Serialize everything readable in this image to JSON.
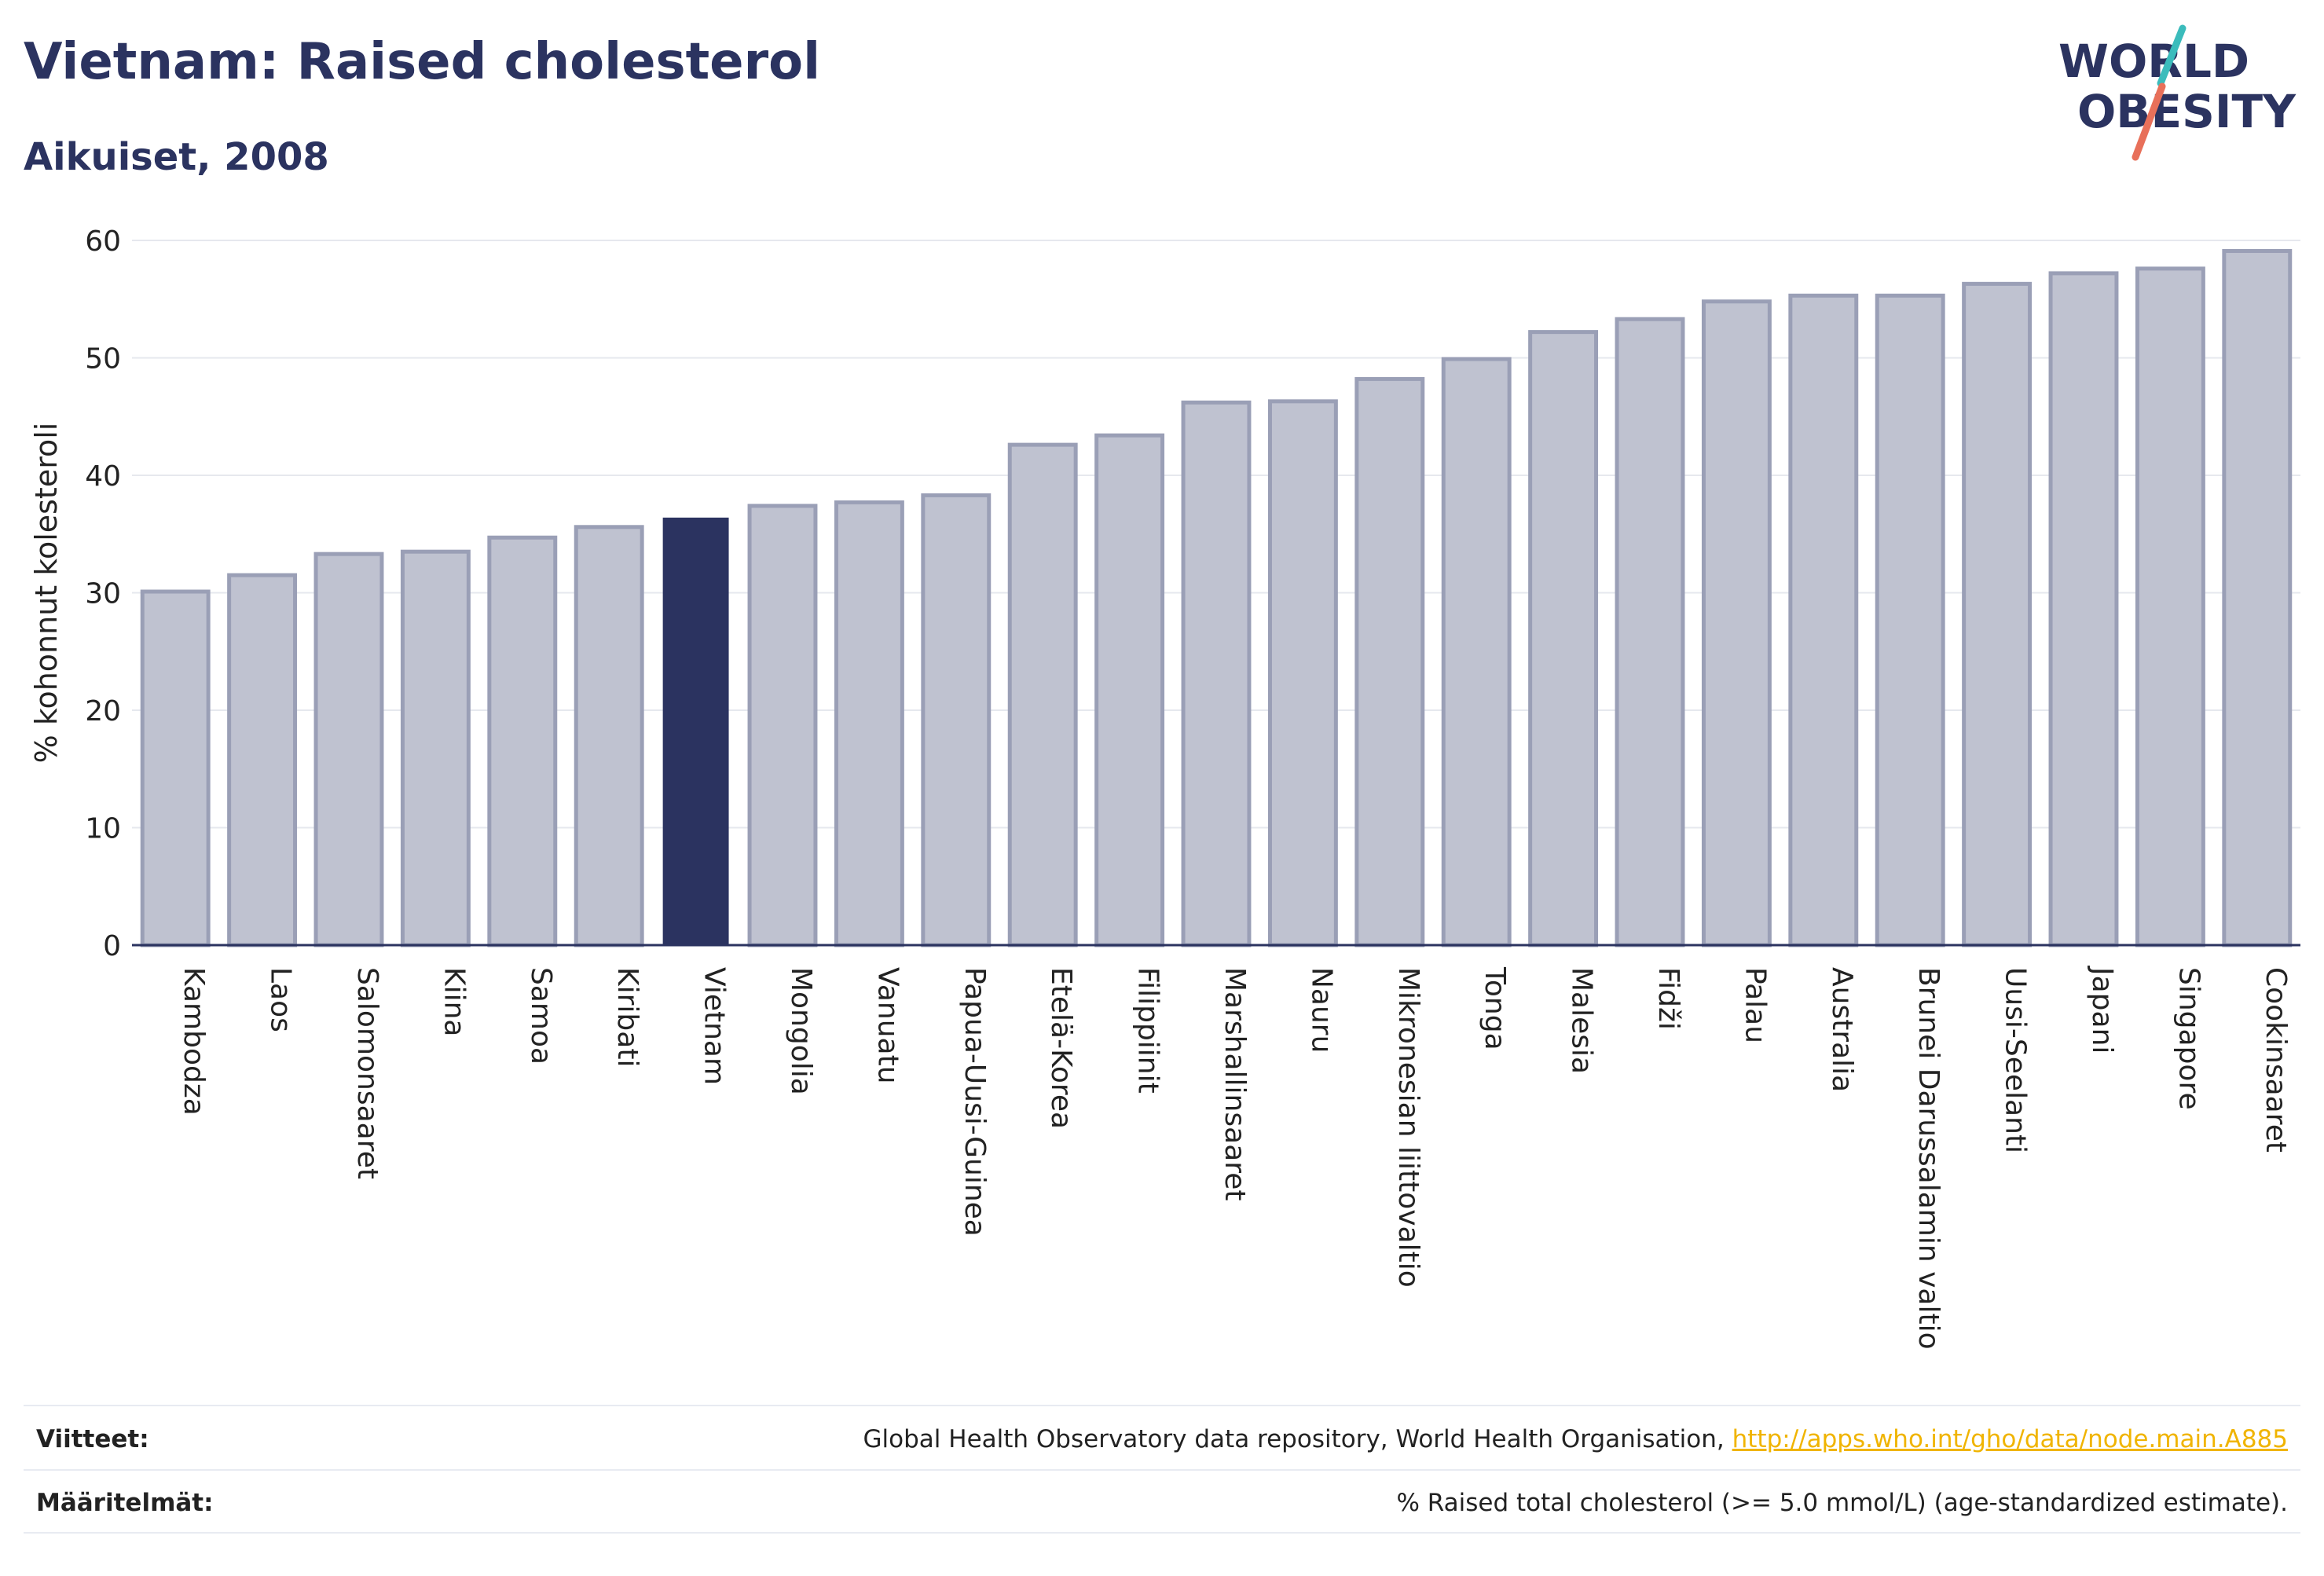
{
  "header": {
    "title": "Vietnam: Raised cholesterol",
    "subtitle": "Aikuiset, 2008"
  },
  "logo": {
    "line1": "WORLD",
    "line2": "OBESITY"
  },
  "colors": {
    "bar_fill": "#bfc2d0",
    "bar_stroke": "#9a9fb6",
    "highlight": "#2b3360",
    "text": "#2b3360",
    "grid": "#e6e8ee",
    "link": "#f0b400",
    "logo_teal": "#3bbcbc",
    "logo_coral": "#e8705a"
  },
  "chart_data": {
    "type": "bar",
    "ylabel": "% kohonnut kolesteroli",
    "xlabel": "",
    "ylim": [
      0,
      60
    ],
    "yticks": [
      0,
      10,
      20,
      30,
      40,
      50,
      60
    ],
    "grid": true,
    "highlight": "Vietnam",
    "categories": [
      "Kambodza",
      "Laos",
      "Salomonsaaret",
      "Kiina",
      "Samoa",
      "Kiribati",
      "Vietnam",
      "Mongolia",
      "Vanuatu",
      "Papua-Uusi-Guinea",
      "Etelä-Korea",
      "Filippiinit",
      "Marshallinsaaret",
      "Nauru",
      "Mikronesian liittovaltio",
      "Tonga",
      "Malesia",
      "Fidži",
      "Palau",
      "Australia",
      "Brunei Darussalamin valtio",
      "Uusi-Seelanti",
      "Japani",
      "Singapore",
      "Cookinsaaret"
    ],
    "values": [
      30.1,
      31.5,
      33.3,
      33.5,
      34.7,
      35.6,
      36.4,
      37.4,
      37.7,
      38.3,
      42.6,
      43.4,
      46.2,
      46.3,
      48.2,
      49.9,
      52.2,
      53.3,
      54.8,
      55.3,
      55.3,
      56.3,
      57.2,
      57.6,
      59.1
    ]
  },
  "footer": {
    "sources_label": "Viitteet:",
    "sources_text": "Global Health Observatory data repository, World Health Organisation, ",
    "sources_link": "http://apps.who.int/gho/data/node.main.A885",
    "definitions_label": "Määritelmät:",
    "definitions_text": "% Raised total cholesterol (>= 5.0 mmol/L) (age-standardized estimate)."
  }
}
